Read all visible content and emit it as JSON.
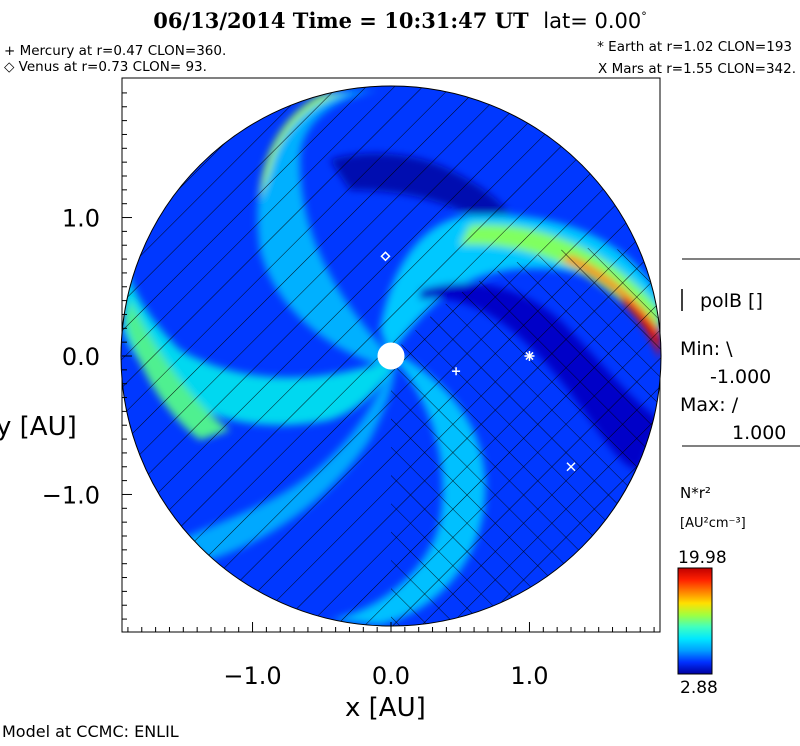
{
  "header": {
    "title": "06/13/2014 Time = 10:31:47 UT",
    "lat_label": "lat= 0.00",
    "lat_degree": "°"
  },
  "planets": {
    "mercury": "+ Mercury at r=0.47 CLON=360.",
    "venus": "◇ Venus at r=0.73 CLON= 93.",
    "earth": "* Earth at  r=1.02 CLON=193",
    "mars": "X Mars at r=1.55 CLON=342."
  },
  "legend": {
    "polarity_title": "polB []",
    "min_label": "Min:",
    "min_symbol": "\\",
    "min_value": "-1.000",
    "max_label": "Max:",
    "max_symbol": "/",
    "max_value": "1.000",
    "colorbar_title": "N*r²",
    "colorbar_unit": "[AU²cm⁻³]",
    "colorbar_max": "19.98",
    "colorbar_min": "2.88"
  },
  "footer": {
    "credit": "Model at CCMC: ENLIL"
  },
  "chart_data": {
    "type": "heatmap",
    "title": "06/13/2014 Time = 10:31:47 UT lat= 0.00°",
    "xlabel": "x [AU]",
    "ylabel": "y [AU]",
    "xlim": [
      -1.95,
      1.95
    ],
    "ylim": [
      -1.95,
      1.95
    ],
    "xticks": [
      -1.0,
      0.0,
      1.0
    ],
    "xtick_labels": [
      "−1.0",
      "0.0",
      "1.0"
    ],
    "yticks": [
      1.0,
      0.0,
      -1.0
    ],
    "ytick_labels": [
      "1.0",
      "0.0",
      "−1.0"
    ],
    "domain_radius_au": 1.95,
    "colorbar": {
      "quantity": "N*r²",
      "unit": "[AU²cm⁻³]",
      "min": 2.88,
      "max": 19.98,
      "colors": [
        "#0000a0",
        "#0030ff",
        "#00a0ff",
        "#00e8ff",
        "#40ffc0",
        "#a0ff40",
        "#ffe000",
        "#ff8000",
        "#ff2000",
        "#c00000"
      ]
    },
    "markers": [
      {
        "name": "Sun",
        "symbol": "circle",
        "x": 0.0,
        "y": 0.0
      },
      {
        "name": "Mercury",
        "symbol": "+",
        "x": 0.47,
        "y": -0.11
      },
      {
        "name": "Venus",
        "symbol": "diamond",
        "x": -0.04,
        "y": 0.72
      },
      {
        "name": "Earth",
        "symbol": "*",
        "x": 1.0,
        "y": 0.0
      },
      {
        "name": "Mars",
        "symbol": "x",
        "x": 1.3,
        "y": -0.8
      }
    ],
    "features": [
      {
        "name": "upper-right stream",
        "peak": 19.98,
        "color": "red"
      },
      {
        "name": "upper-left arc",
        "peak": 14,
        "color": "yellow-green"
      },
      {
        "name": "lower-left arm",
        "peak": 12,
        "color": "green"
      }
    ]
  }
}
